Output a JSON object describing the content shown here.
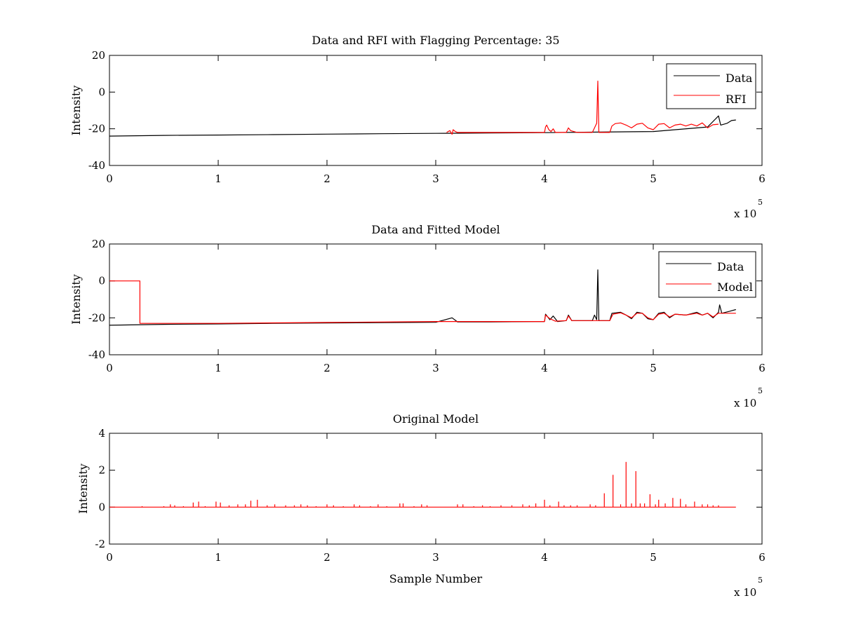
{
  "chart_data": [
    {
      "type": "line",
      "title": "Data and RFI with Flagging Percentage: 35",
      "xlabel": "",
      "ylabel": "Intensity",
      "xlim": [
        0,
        6
      ],
      "ylim": [
        -40,
        20
      ],
      "xticks": [
        "0",
        "1",
        "2",
        "3",
        "4",
        "5",
        "6"
      ],
      "yticks": [
        "20",
        "0",
        "-20",
        "-40"
      ],
      "x_multiplier": {
        "base": "x 10",
        "exp": "5"
      },
      "legend": {
        "position": "top-right",
        "entries": [
          "Data",
          "RFI"
        ]
      },
      "series": [
        {
          "name": "Data",
          "color": "#000000",
          "points": [
            [
              0,
              -24
            ],
            [
              0.5,
              -23.6
            ],
            [
              1,
              -23.4
            ],
            [
              1.5,
              -23.2
            ],
            [
              2,
              -22.9
            ],
            [
              2.5,
              -22.7
            ],
            [
              3,
              -22.5
            ],
            [
              3.5,
              -22.3
            ],
            [
              4,
              -22.1
            ],
            [
              4.5,
              -21.8
            ],
            [
              5,
              -21.5
            ],
            [
              5.5,
              -19
            ],
            [
              5.6,
              -13
            ],
            [
              5.62,
              -18
            ],
            [
              5.68,
              -17
            ],
            [
              5.72,
              -15.5
            ],
            [
              5.76,
              -15.2
            ]
          ]
        },
        {
          "name": "RFI",
          "color": "#ff0000",
          "points": [
            [
              3.1,
              -22
            ],
            [
              3.13,
              -21
            ],
            [
              3.15,
              -23
            ],
            [
              3.16,
              -20.5
            ],
            [
              3.18,
              -21.5
            ],
            [
              3.2,
              -22
            ],
            [
              4.0,
              -22
            ],
            [
              4.01,
              -19
            ],
            [
              4.02,
              -18
            ],
            [
              4.04,
              -20.5
            ],
            [
              4.06,
              -21.5
            ],
            [
              4.08,
              -20
            ],
            [
              4.1,
              -22
            ],
            [
              4.2,
              -22
            ],
            [
              4.22,
              -19.5
            ],
            [
              4.24,
              -21
            ],
            [
              4.3,
              -22
            ],
            [
              4.44,
              -22
            ],
            [
              4.46,
              -19.5
            ],
            [
              4.48,
              -17
            ],
            [
              4.49,
              6
            ],
            [
              4.5,
              -22
            ],
            [
              4.6,
              -22
            ],
            [
              4.62,
              -18.5
            ],
            [
              4.65,
              -17.2
            ],
            [
              4.7,
              -16.8
            ],
            [
              4.75,
              -18
            ],
            [
              4.8,
              -19.5
            ],
            [
              4.85,
              -17.5
            ],
            [
              4.9,
              -17
            ],
            [
              4.95,
              -19.5
            ],
            [
              5.0,
              -20.5
            ],
            [
              5.05,
              -17.5
            ],
            [
              5.1,
              -17.2
            ],
            [
              5.15,
              -19.5
            ],
            [
              5.2,
              -18
            ],
            [
              5.25,
              -17.5
            ],
            [
              5.3,
              -18.5
            ],
            [
              5.35,
              -17.5
            ],
            [
              5.4,
              -18.5
            ],
            [
              5.45,
              -16.8
            ],
            [
              5.5,
              -19.5
            ],
            [
              5.55,
              -17.8
            ],
            [
              5.6,
              -17.5
            ]
          ]
        }
      ]
    },
    {
      "type": "line",
      "title": "Data and Fitted Model",
      "xlabel": "",
      "ylabel": "Intensity",
      "xlim": [
        0,
        6
      ],
      "ylim": [
        -40,
        20
      ],
      "xticks": [
        "0",
        "1",
        "2",
        "3",
        "4",
        "5",
        "6"
      ],
      "yticks": [
        "20",
        "0",
        "-20",
        "-40"
      ],
      "x_multiplier": {
        "base": "x 10",
        "exp": "5"
      },
      "legend": {
        "position": "top-right",
        "entries": [
          "Data",
          "Model"
        ]
      },
      "series": [
        {
          "name": "Data",
          "color": "#000000",
          "points": [
            [
              0,
              -24
            ],
            [
              0.5,
              -23.5
            ],
            [
              1,
              -23.3
            ],
            [
              1.5,
              -23
            ],
            [
              2,
              -22.8
            ],
            [
              2.5,
              -22.6
            ],
            [
              3,
              -22.4
            ],
            [
              3.15,
              -20
            ],
            [
              3.2,
              -22.2
            ],
            [
              3.5,
              -22.2
            ],
            [
              4,
              -22
            ],
            [
              4.01,
              -18
            ],
            [
              4.05,
              -21
            ],
            [
              4.08,
              -19
            ],
            [
              4.12,
              -22
            ],
            [
              4.2,
              -21.5
            ],
            [
              4.22,
              -18.5
            ],
            [
              4.25,
              -21.5
            ],
            [
              4.44,
              -21.5
            ],
            [
              4.46,
              -18.5
            ],
            [
              4.48,
              -21
            ],
            [
              4.49,
              6
            ],
            [
              4.5,
              -21.5
            ],
            [
              4.6,
              -21.5
            ],
            [
              4.62,
              -17.5
            ],
            [
              4.7,
              -17
            ],
            [
              4.75,
              -18.5
            ],
            [
              4.8,
              -20.5
            ],
            [
              4.85,
              -17
            ],
            [
              4.9,
              -17.5
            ],
            [
              4.95,
              -20.5
            ],
            [
              5.0,
              -21
            ],
            [
              5.05,
              -17.5
            ],
            [
              5.1,
              -17
            ],
            [
              5.15,
              -20
            ],
            [
              5.2,
              -18
            ],
            [
              5.3,
              -18.5
            ],
            [
              5.4,
              -17
            ],
            [
              5.45,
              -18.5
            ],
            [
              5.5,
              -17.5
            ],
            [
              5.55,
              -20
            ],
            [
              5.6,
              -17
            ],
            [
              5.61,
              -13
            ],
            [
              5.63,
              -17.5
            ],
            [
              5.7,
              -16.5
            ],
            [
              5.76,
              -15.5
            ]
          ]
        },
        {
          "name": "Model",
          "color": "#ff0000",
          "points": [
            [
              0,
              0
            ],
            [
              0.28,
              0
            ],
            [
              0.28,
              -23
            ],
            [
              1,
              -23
            ],
            [
              2,
              -22.5
            ],
            [
              3,
              -22
            ],
            [
              4,
              -22
            ],
            [
              4.01,
              -18.5
            ],
            [
              4.05,
              -20.5
            ],
            [
              4.1,
              -21.8
            ],
            [
              4.2,
              -21.5
            ],
            [
              4.22,
              -19
            ],
            [
              4.25,
              -21.5
            ],
            [
              4.5,
              -21.5
            ],
            [
              4.6,
              -21.5
            ],
            [
              4.63,
              -18
            ],
            [
              4.7,
              -17.3
            ],
            [
              4.75,
              -18.5
            ],
            [
              4.8,
              -20
            ],
            [
              4.85,
              -17.5
            ],
            [
              4.9,
              -17.5
            ],
            [
              4.95,
              -20
            ],
            [
              5.0,
              -21
            ],
            [
              5.05,
              -18
            ],
            [
              5.1,
              -17.5
            ],
            [
              5.15,
              -19.5
            ],
            [
              5.2,
              -18
            ],
            [
              5.3,
              -18.5
            ],
            [
              5.4,
              -17.5
            ],
            [
              5.45,
              -18.5
            ],
            [
              5.5,
              -17.5
            ],
            [
              5.55,
              -19.5
            ],
            [
              5.6,
              -17.5
            ],
            [
              5.76,
              -17.5
            ]
          ]
        }
      ]
    },
    {
      "type": "line",
      "title": "Original Model",
      "xlabel": "Sample Number",
      "ylabel": "Intensity",
      "xlim": [
        0,
        6
      ],
      "ylim": [
        -2,
        4
      ],
      "xticks": [
        "0",
        "1",
        "2",
        "3",
        "4",
        "5",
        "6"
      ],
      "yticks": [
        "4",
        "2",
        "0",
        "-2"
      ],
      "x_multiplier": {
        "base": "x 10",
        "exp": "5"
      },
      "series": [
        {
          "color": "#ff0000",
          "baseline_x": [
            0,
            5.76
          ],
          "spikes": [
            [
              0.3,
              0.05
            ],
            [
              0.5,
              0.05
            ],
            [
              0.56,
              0.15
            ],
            [
              0.6,
              0.1
            ],
            [
              0.68,
              0.05
            ],
            [
              0.77,
              0.25
            ],
            [
              0.82,
              0.3
            ],
            [
              0.88,
              0.05
            ],
            [
              0.98,
              0.3
            ],
            [
              1.02,
              0.25
            ],
            [
              1.1,
              0.1
            ],
            [
              1.18,
              0.15
            ],
            [
              1.25,
              0.15
            ],
            [
              1.3,
              0.35
            ],
            [
              1.36,
              0.4
            ],
            [
              1.45,
              0.1
            ],
            [
              1.52,
              0.15
            ],
            [
              1.62,
              0.1
            ],
            [
              1.7,
              0.1
            ],
            [
              1.76,
              0.15
            ],
            [
              1.82,
              0.1
            ],
            [
              1.9,
              0.05
            ],
            [
              2.0,
              0.15
            ],
            [
              2.06,
              0.1
            ],
            [
              2.15,
              0.05
            ],
            [
              2.25,
              0.15
            ],
            [
              2.3,
              0.1
            ],
            [
              2.4,
              0.05
            ],
            [
              2.47,
              0.15
            ],
            [
              2.55,
              0.05
            ],
            [
              2.67,
              0.2
            ],
            [
              2.7,
              0.2
            ],
            [
              2.8,
              0.05
            ],
            [
              2.87,
              0.15
            ],
            [
              2.92,
              0.1
            ],
            [
              3.2,
              0.15
            ],
            [
              3.25,
              0.15
            ],
            [
              3.35,
              0.05
            ],
            [
              3.43,
              0.1
            ],
            [
              3.5,
              0.05
            ],
            [
              3.6,
              0.1
            ],
            [
              3.7,
              0.1
            ],
            [
              3.8,
              0.15
            ],
            [
              3.86,
              0.1
            ],
            [
              3.92,
              0.2
            ],
            [
              4.0,
              0.4
            ],
            [
              4.05,
              0.1
            ],
            [
              4.13,
              0.3
            ],
            [
              4.18,
              0.1
            ],
            [
              4.24,
              0.1
            ],
            [
              4.3,
              0.1
            ],
            [
              4.42,
              0.15
            ],
            [
              4.47,
              0.1
            ],
            [
              4.55,
              0.75
            ],
            [
              4.63,
              1.75
            ],
            [
              4.7,
              0.15
            ],
            [
              4.75,
              2.45
            ],
            [
              4.8,
              0.2
            ],
            [
              4.84,
              1.95
            ],
            [
              4.88,
              0.2
            ],
            [
              4.92,
              0.2
            ],
            [
              4.97,
              0.7
            ],
            [
              5.02,
              0.15
            ],
            [
              5.05,
              0.4
            ],
            [
              5.11,
              0.2
            ],
            [
              5.18,
              0.5
            ],
            [
              5.25,
              0.45
            ],
            [
              5.3,
              0.15
            ],
            [
              5.38,
              0.3
            ],
            [
              5.45,
              0.15
            ],
            [
              5.5,
              0.15
            ],
            [
              5.55,
              0.1
            ],
            [
              5.6,
              0.1
            ]
          ]
        }
      ]
    }
  ]
}
